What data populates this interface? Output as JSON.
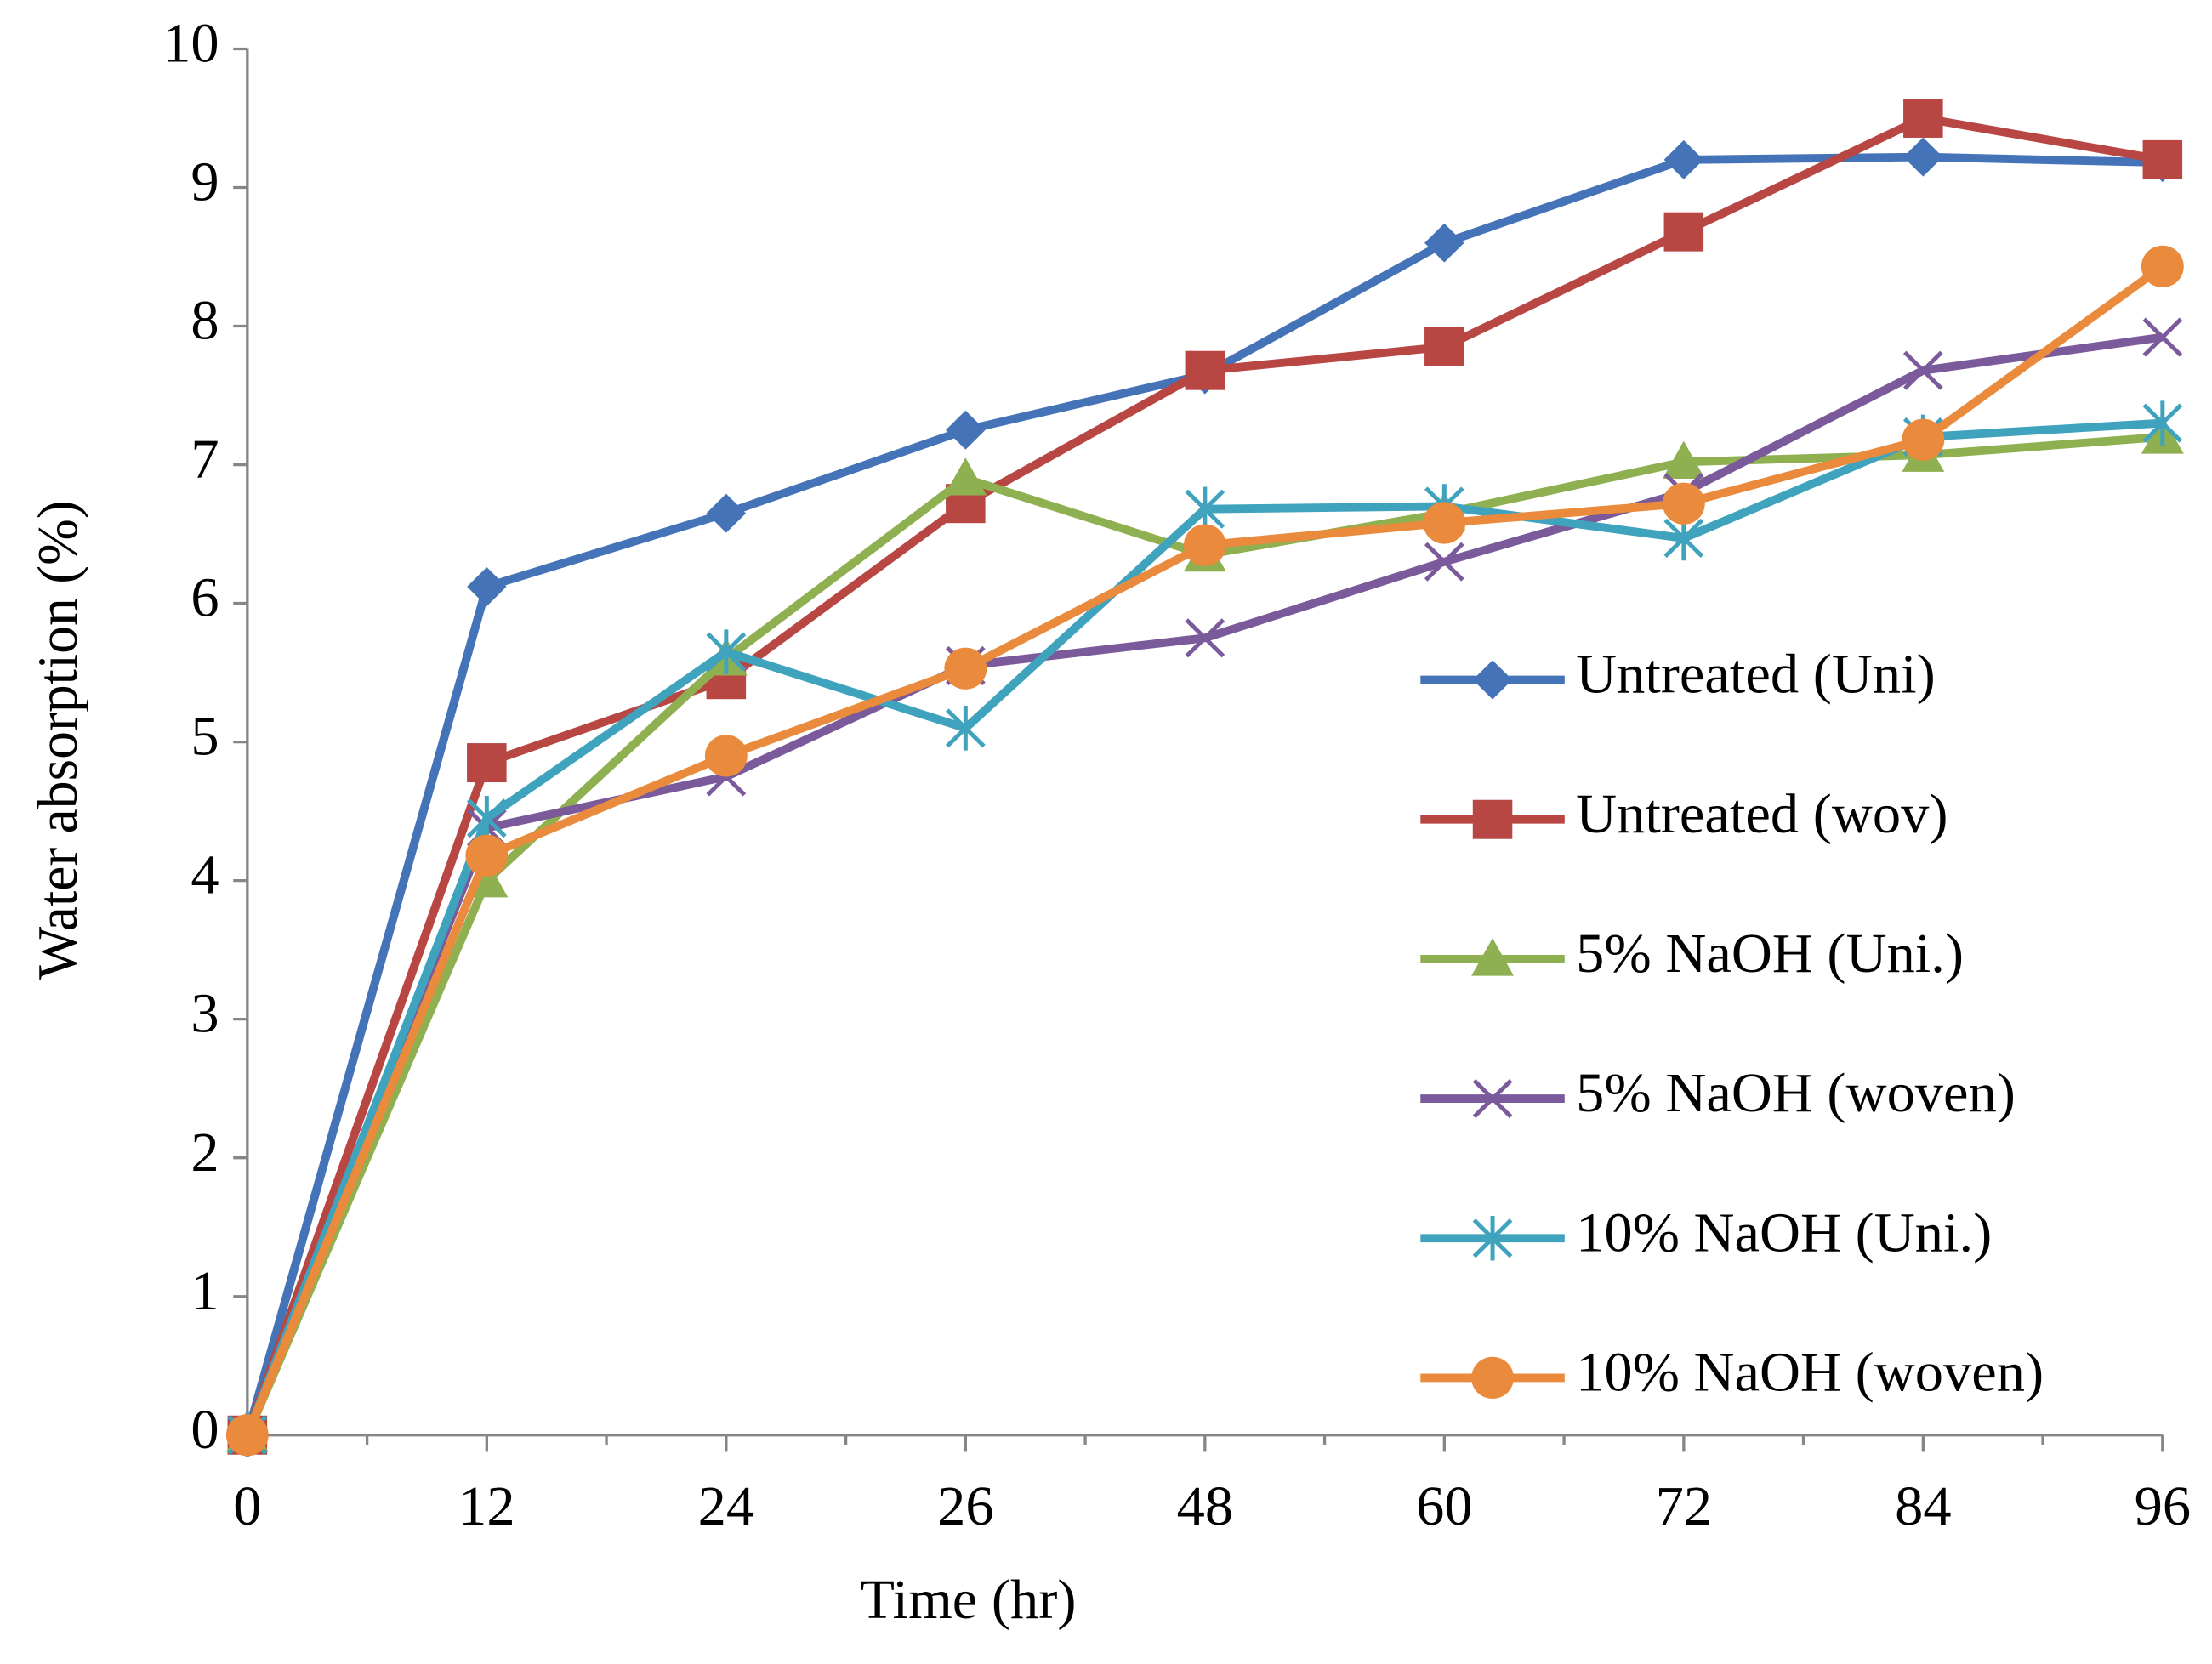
{
  "chart_data": {
    "type": "line",
    "x_label": "Time (hr)",
    "y_label": "Water absorption (%)",
    "categories": [
      "0",
      "12",
      "24",
      "26",
      "48",
      "60",
      "72",
      "84",
      "96"
    ],
    "ylim": [
      0,
      10
    ],
    "yticks": [
      0,
      1,
      2,
      3,
      4,
      5,
      6,
      7,
      8,
      9,
      10
    ],
    "grid": false,
    "legend": "right",
    "series": [
      {
        "name": "Untreated (Uni)",
        "color": "#4573b8",
        "marker": "diamond",
        "values": [
          0,
          6.12,
          6.65,
          7.25,
          7.65,
          8.6,
          9.2,
          9.22,
          9.18
        ]
      },
      {
        "name": "Untreated (wov)",
        "color": "#b84643",
        "marker": "square",
        "values": [
          0,
          4.85,
          5.45,
          6.72,
          7.68,
          7.85,
          8.68,
          9.5,
          9.2
        ]
      },
      {
        "name": "5% NaOH (Uni.)",
        "color": "#8fb050",
        "marker": "triangle",
        "values": [
          0,
          4.0,
          5.6,
          6.9,
          6.35,
          6.65,
          7.02,
          7.07,
          7.2
        ]
      },
      {
        "name": "5% NaOH (woven)",
        "color": "#7a5a9a",
        "marker": "x",
        "values": [
          0,
          4.38,
          4.75,
          5.55,
          5.75,
          6.3,
          6.8,
          7.68,
          7.92
        ]
      },
      {
        "name": "10% NaOH (Uni.)",
        "color": "#3fa3bd",
        "marker": "star",
        "values": [
          0,
          4.45,
          5.65,
          5.1,
          6.68,
          6.7,
          6.47,
          7.2,
          7.3
        ]
      },
      {
        "name": "10% NaOH (woven)",
        "color": "#ea8a3c",
        "marker": "circle",
        "values": [
          0,
          4.18,
          4.9,
          5.53,
          6.42,
          6.58,
          6.72,
          7.18,
          8.43
        ]
      }
    ]
  }
}
